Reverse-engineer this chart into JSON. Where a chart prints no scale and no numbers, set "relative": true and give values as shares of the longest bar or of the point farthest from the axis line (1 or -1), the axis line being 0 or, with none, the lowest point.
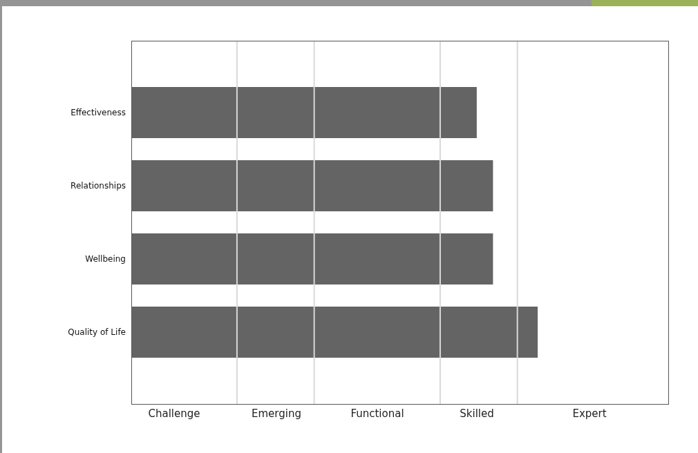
{
  "chart_data": {
    "type": "bar",
    "orientation": "horizontal",
    "relative": true,
    "categories": [
      "Effectiveness",
      "Relationships",
      "Wellbeing",
      "Quality of Life"
    ],
    "values": [
      0.85,
      0.89,
      0.89,
      1
    ],
    "color": "#646464",
    "ref_lines": [
      {
        "axis": "x",
        "value": 0.26,
        "color": "#d9d9d9"
      },
      {
        "axis": "x",
        "value": 0.45,
        "color": "#d9d9d9"
      },
      {
        "axis": "x",
        "value": 0.76,
        "color": "#d9d9d9"
      },
      {
        "axis": "x",
        "value": 0.95,
        "color": "#d9d9d9"
      }
    ],
    "annotations": [
      "Challenge",
      "Emerging",
      "Functional",
      "Skilled",
      "Expert"
    ],
    "grid": false,
    "legend": false
  }
}
